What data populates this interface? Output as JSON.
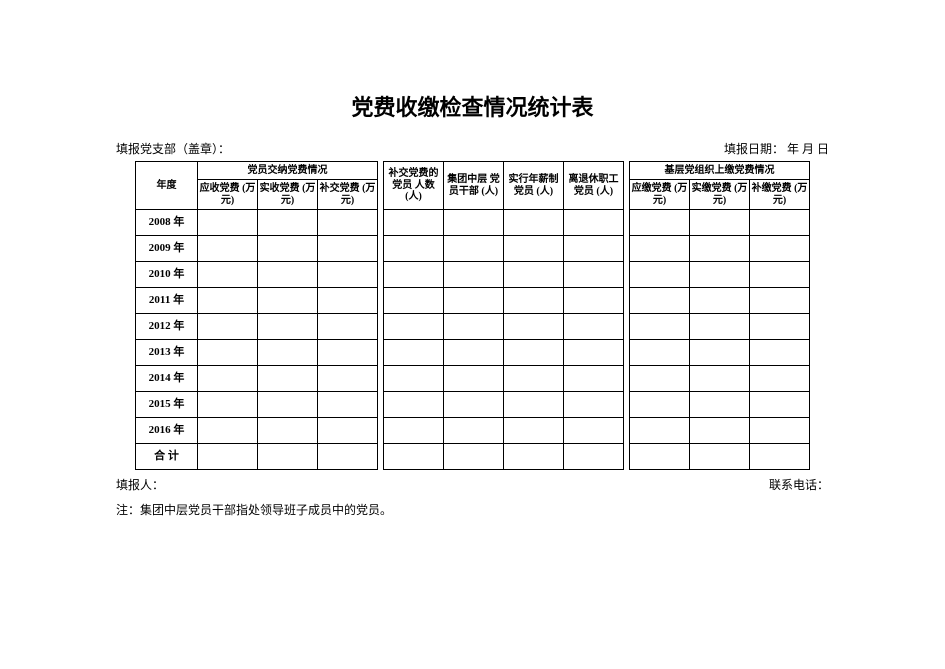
{
  "title": "党费收缴检查情况统计表",
  "meta": {
    "branch_label": "填报党支部（盖章）：",
    "date_label": "填报日期：     年   月   日"
  },
  "headers": {
    "year": "年度",
    "group1": "党员交纳党费情况",
    "g1c1": "应收党费\n(万元)",
    "g1c2": "实收党费\n(万元)",
    "g1c3": "补交党费\n(万元)",
    "mid1": "补交党费的党员\n人数\n(人)",
    "mid2": "集团中层\n党员干部\n(人)",
    "mid3": "实行年薪制党员\n(人)",
    "mid4": "离退休职工党员\n(人)",
    "group2": "基层党组织上缴党费情况",
    "g2c1": "应缴党费\n(万元)",
    "g2c2": "实缴党费\n(万元)",
    "g2c3": "补缴党费\n(万元)"
  },
  "years": [
    "2008 年",
    "2009 年",
    "2010 年",
    "2011 年",
    "2012 年",
    "2013 年",
    "2014 年",
    "2015 年",
    "2016 年",
    "合  计"
  ],
  "footer": {
    "reporter": "填报人：",
    "phone": "联系电话："
  },
  "note": "注：集团中层党员干部指处领导班子成员中的党员。"
}
